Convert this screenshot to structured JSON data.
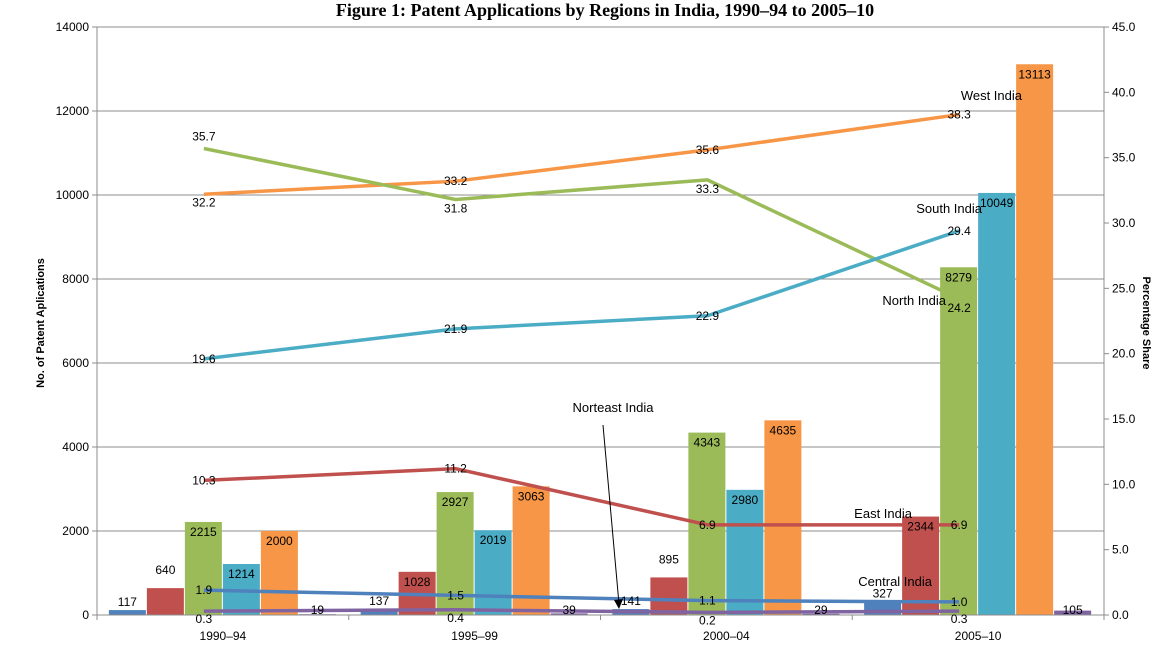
{
  "chart_data": {
    "type": "bar",
    "title": "Figure 1: Patent Applications by Regions in India, 1990–94 to 2005–10",
    "categories": [
      "1990–94",
      "1995–99",
      "2000–04",
      "2005–10"
    ],
    "y_left_label": "No. of Patent Aplications",
    "y_right_label": "Percentage Share",
    "ylim_left": [
      0,
      14000
    ],
    "ylim_right": [
      0,
      45
    ],
    "yticks_left": [
      "0",
      "2000",
      "4000",
      "6000",
      "8000",
      "10000",
      "12000",
      "14000"
    ],
    "yticks_right": [
      "0.0",
      "5.0",
      "10.0",
      "15.0",
      "20.0",
      "25.0",
      "30.0",
      "35.0",
      "40.0",
      "45.0"
    ],
    "grid": true,
    "bar_series": [
      {
        "key": "central",
        "color": "#4F81BD",
        "values": [
          117,
          137,
          141,
          327
        ]
      },
      {
        "key": "east",
        "color": "#C0504D",
        "values": [
          640,
          1028,
          895,
          2344
        ]
      },
      {
        "key": "north",
        "color": "#9BBB59",
        "values": [
          2215,
          2927,
          4343,
          8279
        ]
      },
      {
        "key": "south",
        "color": "#4BACC6",
        "values": [
          1214,
          2019,
          2980,
          10049
        ]
      },
      {
        "key": "west",
        "color": "#F79646",
        "values": [
          2000,
          3063,
          4635,
          13113
        ]
      },
      {
        "key": "northeast",
        "color": "#8064A2",
        "values": [
          19,
          39,
          29,
          105
        ]
      }
    ],
    "line_series": [
      {
        "key": "west",
        "color": "#F79646",
        "values": [
          32.2,
          33.2,
          35.6,
          38.3
        ]
      },
      {
        "key": "north",
        "color": "#9BBB59",
        "values": [
          35.7,
          31.8,
          33.3,
          24.2
        ]
      },
      {
        "key": "south",
        "color": "#4BACC6",
        "values": [
          19.6,
          21.9,
          22.9,
          29.4
        ]
      },
      {
        "key": "east",
        "color": "#C0504D",
        "values": [
          10.3,
          11.2,
          6.9,
          6.9
        ]
      },
      {
        "key": "central",
        "color": "#4F81BD",
        "values": [
          1.9,
          1.5,
          1.1,
          1.0
        ]
      },
      {
        "key": "northeast",
        "color": "#8064A2",
        "values": [
          0.3,
          0.4,
          0.2,
          0.3
        ]
      }
    ],
    "annotations": {
      "west": "West India",
      "south": "South India",
      "north": "North India",
      "east": "East India",
      "central": "Central India",
      "northeast": "Norteast India"
    }
  }
}
